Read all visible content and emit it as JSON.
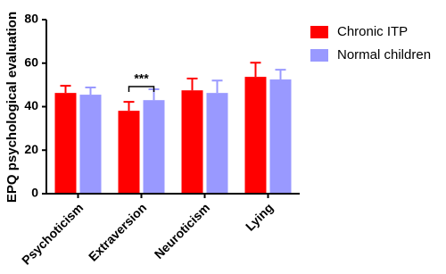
{
  "chart_data": {
    "type": "bar",
    "y_label": "EPQ psychological evaluation",
    "categories": [
      "Psychoticism",
      "Extraversion",
      "Neuroticism",
      "Lying"
    ],
    "series": [
      {
        "name": "Chronic ITP",
        "color": "#ff0000",
        "values": [
          46.3,
          38.1,
          47.5,
          53.7
        ],
        "errors": [
          3.3,
          4.1,
          5.4,
          6.5
        ]
      },
      {
        "name": "Normal children",
        "color": "#9999ff",
        "values": [
          45.5,
          43,
          46.3,
          52.5
        ],
        "errors": [
          3.3,
          5,
          5.7,
          4.5
        ]
      }
    ],
    "annotation": "***",
    "ylim": [
      0,
      80
    ],
    "yticks": [
      0,
      20,
      40,
      60,
      80
    ],
    "grid": false,
    "legend": "right"
  }
}
